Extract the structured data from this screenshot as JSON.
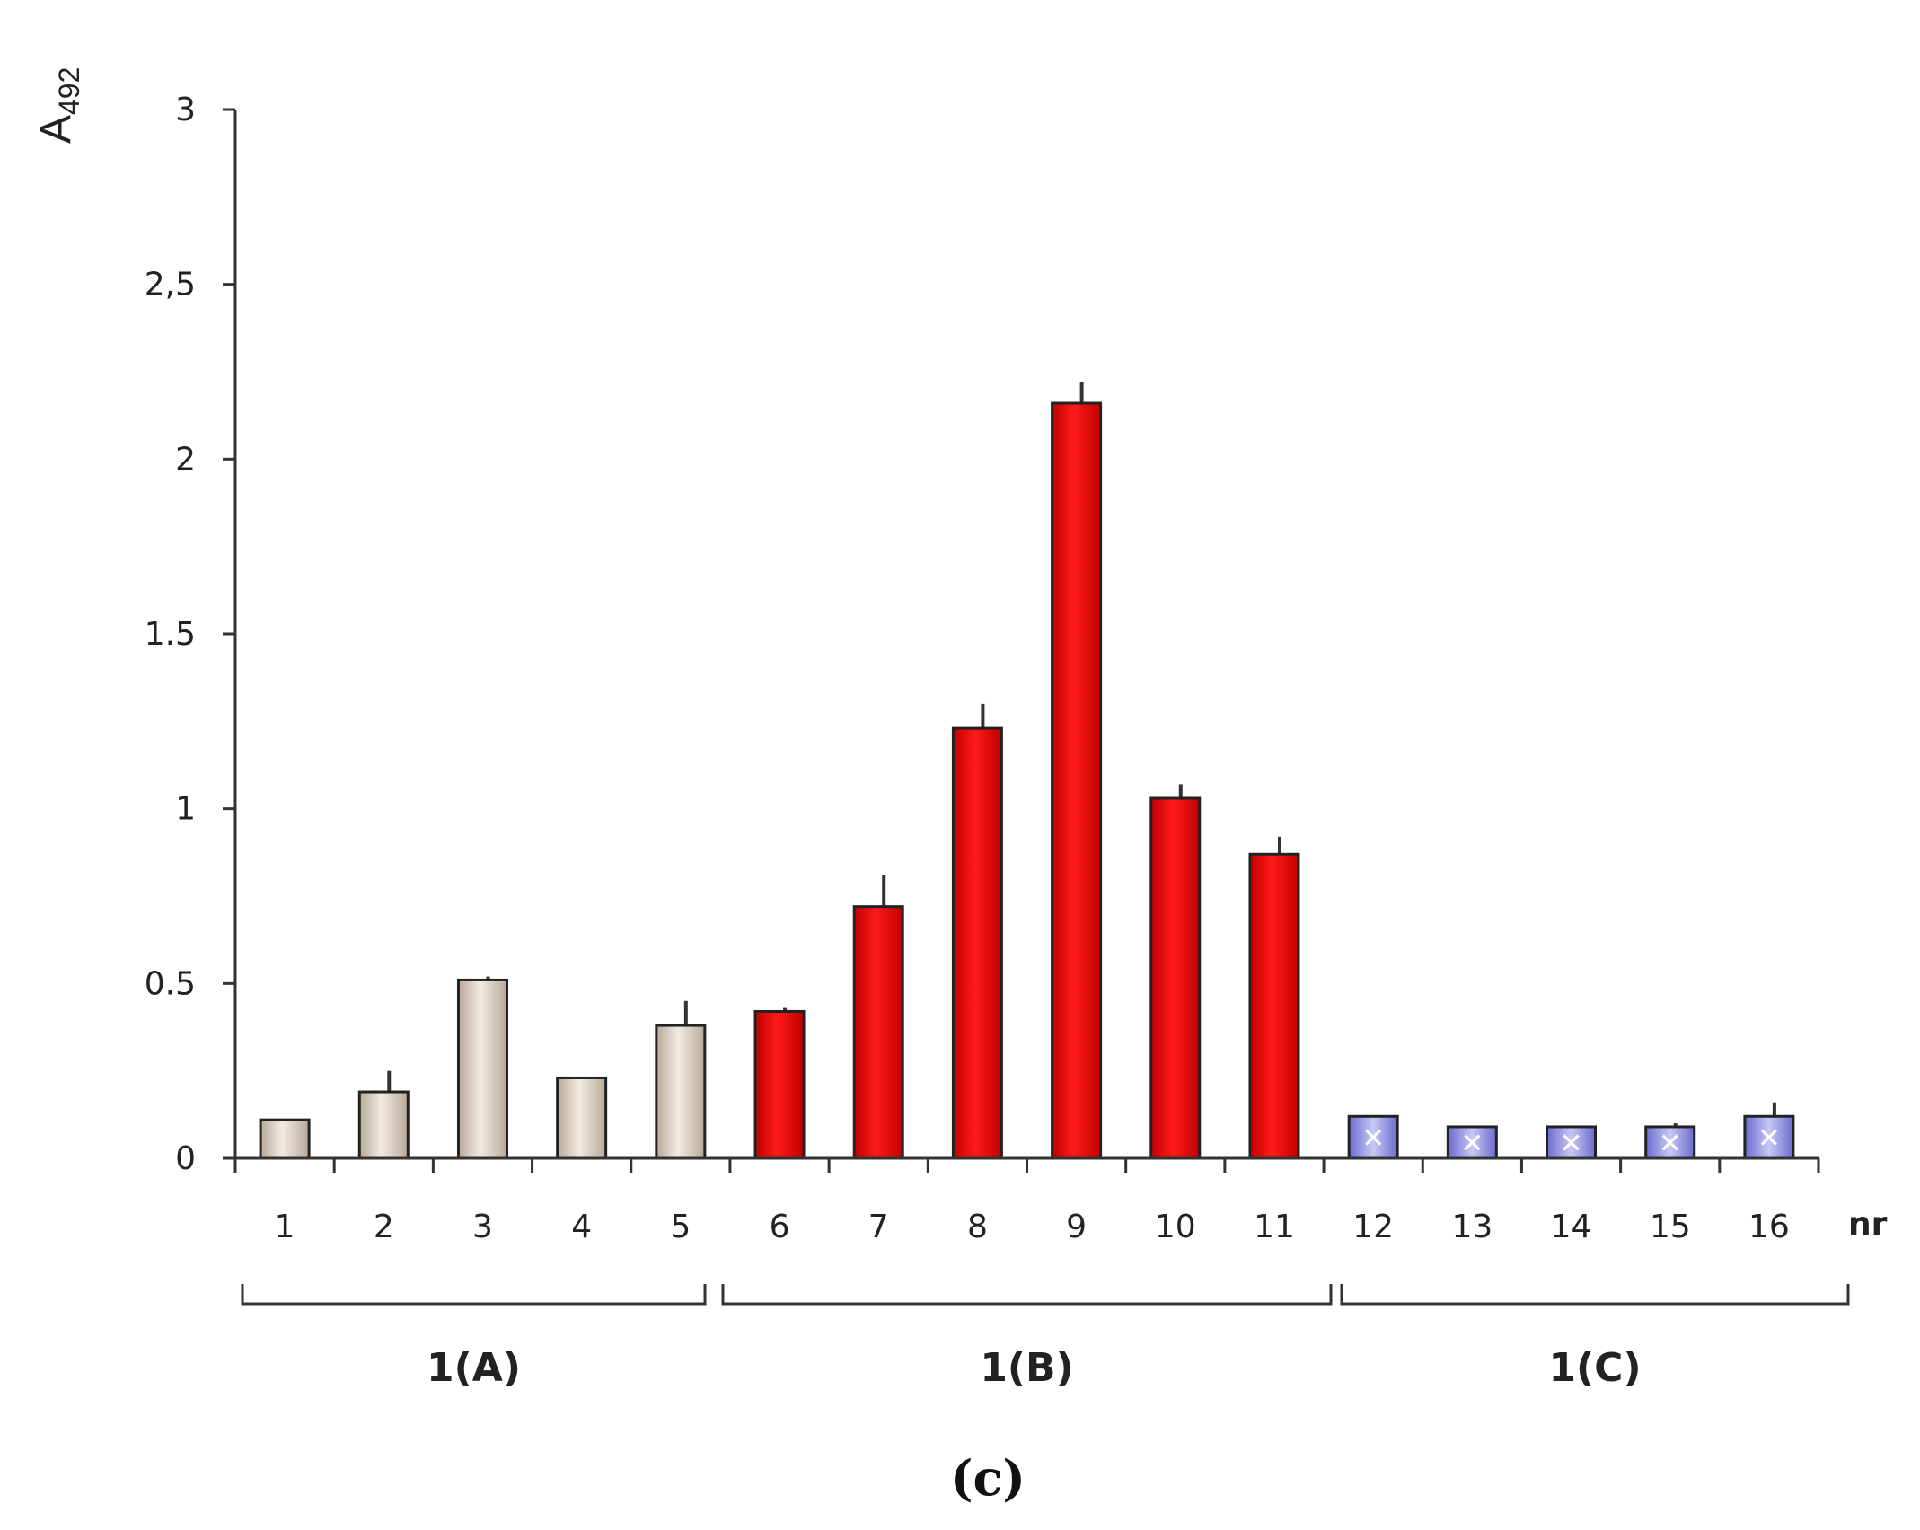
{
  "chart_data": {
    "type": "bar",
    "ylabel_main": "A",
    "ylabel_sub": "492",
    "xlabel": "nr",
    "ylim": [
      0,
      3
    ],
    "yticks": [
      "0",
      "0.5",
      "1",
      "1.5",
      "2",
      "2,5",
      "3"
    ],
    "ytick_values": [
      0,
      0.5,
      1,
      1.5,
      2,
      2.5,
      3
    ],
    "categories": [
      "1",
      "2",
      "3",
      "4",
      "5",
      "6",
      "7",
      "8",
      "9",
      "10",
      "11",
      "12",
      "13",
      "14",
      "15",
      "16"
    ],
    "values": [
      0.11,
      0.19,
      0.51,
      0.23,
      0.38,
      0.42,
      0.72,
      1.23,
      2.16,
      1.03,
      0.87,
      0.12,
      0.09,
      0.09,
      0.09,
      0.12
    ],
    "errors": [
      0.0,
      0.06,
      0.01,
      0.0,
      0.07,
      0.01,
      0.09,
      0.07,
      0.06,
      0.04,
      0.05,
      0.0,
      0.0,
      0.0,
      0.01,
      0.04
    ],
    "groups": [
      {
        "label": "1(A)",
        "start": 0,
        "end": 4,
        "color": "#ddd0c0"
      },
      {
        "label": "1(B)",
        "start": 5,
        "end": 10,
        "color": "#ee1111"
      },
      {
        "label": "1(C)",
        "start": 11,
        "end": 15,
        "color": "#7777dd"
      }
    ],
    "grid": false,
    "legend": false
  },
  "caption": "(c)"
}
